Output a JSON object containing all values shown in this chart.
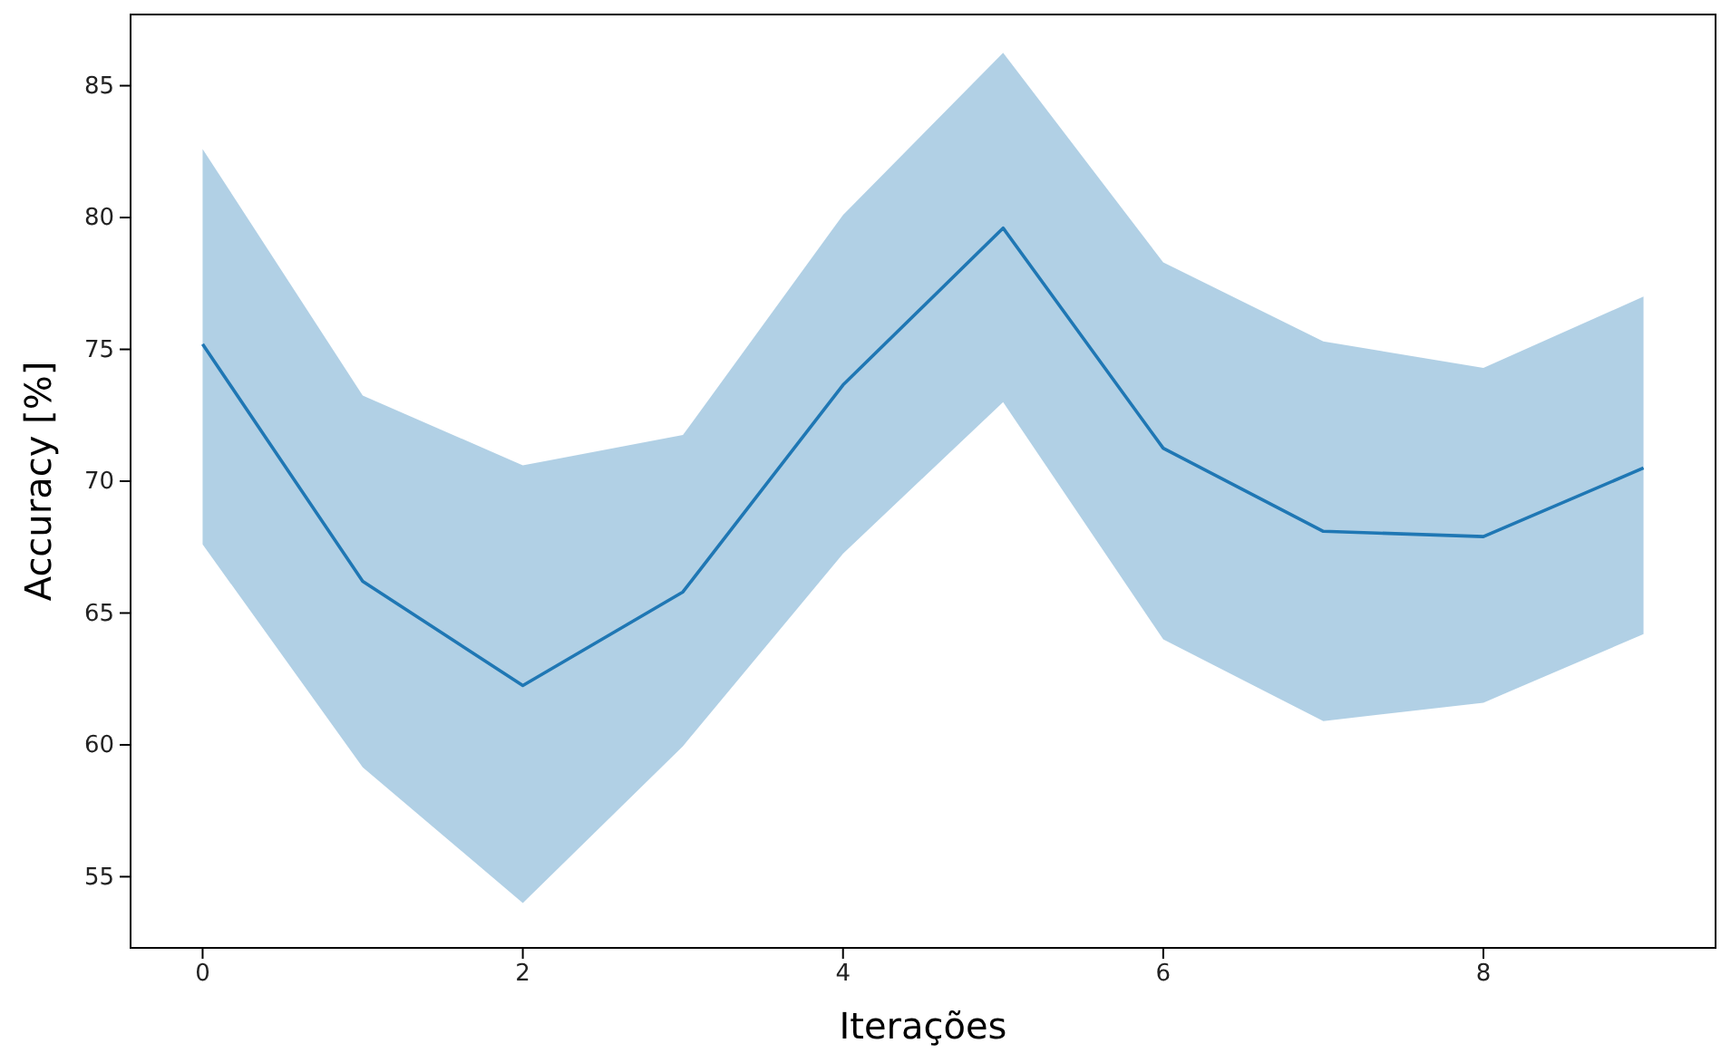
{
  "chart_data": {
    "type": "line",
    "xlabel": "Iterações",
    "ylabel": "Accuracy [%]",
    "x": [
      0,
      1,
      2,
      3,
      4,
      5,
      6,
      7,
      8,
      9
    ],
    "series": [
      {
        "color": "#1f77b4",
        "values": [
          75.2,
          66.2,
          62.25,
          65.8,
          73.65,
          79.6,
          71.25,
          68.1,
          67.9,
          70.5
        ],
        "lower": [
          67.6,
          59.15,
          54.0,
          59.95,
          67.25,
          73.0,
          64.0,
          60.9,
          61.6,
          64.2
        ],
        "upper": [
          82.6,
          73.25,
          70.6,
          71.75,
          80.1,
          86.25,
          78.3,
          75.3,
          74.3,
          77.0
        ]
      }
    ],
    "xlim": [
      -0.45,
      9.45
    ],
    "xticks": [
      0,
      2,
      4,
      6,
      8
    ],
    "ylim": [
      52.3,
      87.7
    ],
    "yticks": [
      55,
      60,
      65,
      70,
      75,
      80,
      85
    ],
    "grid": false,
    "marker": "none",
    "line_style": "solid"
  }
}
